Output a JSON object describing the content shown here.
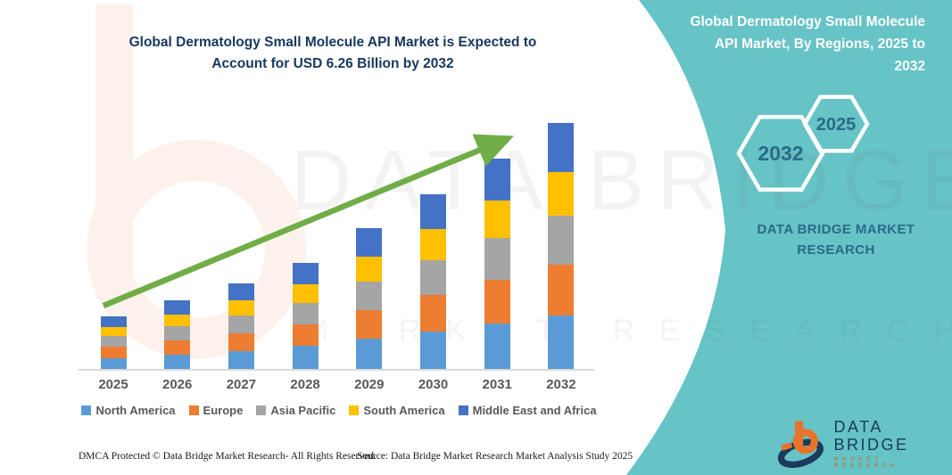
{
  "main": {
    "title": "Global Dermatology Small Molecule API Market is Expected to Account for USD 6.26 Billion by 2032",
    "footer_left": "DMCA Protected © Data Bridge Market Research-  All Rights Reserved.",
    "footer_source": "Source: Data Bridge Market Research  Market Analysis Study 2025",
    "watermark_line1": "DATA BRIDGE",
    "watermark_line2": "MARKET RESEARCH"
  },
  "side_panel": {
    "title": "Global Dermatology Small Molecule API Market, By Regions, 2025 to 2032",
    "hexagon_left_label": "2032",
    "hexagon_right_label": "2025",
    "brand_text": "DATA BRIDGE MARKET RESEARCH",
    "background_color": "#66c3c6",
    "text_color": "#2b6a8a"
  },
  "logo": {
    "name": "DATA BRIDGE",
    "subtitle": "MARKET RESEARCH",
    "navy": "#1b3a5c",
    "orange": "#e8742c"
  },
  "colors": {
    "title_navy": "#17375e",
    "axis_label_gray": "#595959",
    "axis_line_gray": "#d9d9d9",
    "trend_arrow_green": "#70ad47"
  },
  "chart_data": {
    "type": "bar",
    "stacked": true,
    "title": "Global Dermatology Small Molecule API Market is Expected to Account for USD 6.26 Billion by 2032",
    "unit": "USD Billion",
    "xlabel": "",
    "ylabel": "",
    "y_axis_visible": false,
    "grid": false,
    "legend_position": "bottom",
    "trend_arrow": true,
    "categories": [
      "2025",
      "2026",
      "2027",
      "2028",
      "2029",
      "2030",
      "2031",
      "2032"
    ],
    "series": [
      {
        "name": "North America",
        "color": "#5B9BD5",
        "values": [
          0.3,
          0.39,
          0.48,
          0.6,
          0.79,
          0.98,
          1.18,
          1.38
        ]
      },
      {
        "name": "Europe",
        "color": "#ED7D31",
        "values": [
          0.28,
          0.36,
          0.45,
          0.56,
          0.73,
          0.92,
          1.1,
          1.28
        ]
      },
      {
        "name": "Asia Pacific",
        "color": "#A5A5A5",
        "values": [
          0.27,
          0.35,
          0.44,
          0.54,
          0.72,
          0.89,
          1.07,
          1.25
        ]
      },
      {
        "name": "South America",
        "color": "#FFC000",
        "values": [
          0.24,
          0.31,
          0.39,
          0.48,
          0.63,
          0.78,
          0.94,
          1.1
        ]
      },
      {
        "name": "Middle East and Africa",
        "color": "#4472C4",
        "values": [
          0.27,
          0.35,
          0.44,
          0.54,
          0.72,
          0.89,
          1.07,
          1.25
        ]
      }
    ],
    "estimated_totals_usd_billion": [
      1.36,
      1.76,
      2.2,
      2.72,
      3.59,
      4.46,
      5.36,
      6.26
    ]
  }
}
